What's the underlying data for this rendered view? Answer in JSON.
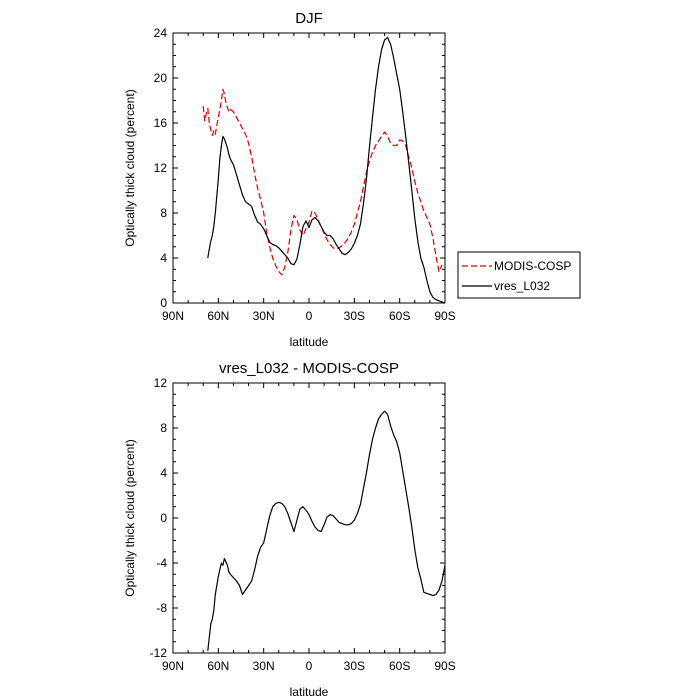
{
  "chart_data": [
    {
      "type": "line",
      "title": "DJF",
      "xlabel": "latitude",
      "ylabel": "Optically thick cloud (percent)",
      "xlim": [
        90,
        -90
      ],
      "ylim": [
        0,
        24
      ],
      "x_ticks": [
        90,
        60,
        30,
        0,
        -30,
        -60,
        -90
      ],
      "x_tick_labels": [
        "90N",
        "60N",
        "30N",
        "0",
        "30S",
        "60S",
        "90S"
      ],
      "y_ticks": [
        0,
        4,
        8,
        12,
        16,
        20,
        24
      ],
      "y_tick_labels": [
        "0",
        "4",
        "8",
        "12",
        "16",
        "20",
        "24"
      ],
      "legend_position": "right",
      "legend": [
        {
          "name": "MODIS-COSP",
          "color": "#e00000",
          "dash": "dashed"
        },
        {
          "name": "vres_L032",
          "color": "#000000",
          "dash": "solid"
        }
      ],
      "series": [
        {
          "name": "MODIS-COSP",
          "color": "#e00000",
          "dash": "dashed",
          "x": [
            70,
            69,
            68,
            67,
            66,
            65,
            64,
            63,
            62,
            61,
            60,
            59,
            58,
            57,
            56,
            55,
            54,
            53,
            52,
            50,
            48,
            46,
            44,
            42,
            40,
            38,
            36,
            34,
            32,
            30,
            28,
            26,
            24,
            22,
            20,
            18,
            16,
            14,
            12,
            10,
            8,
            6,
            4,
            2,
            0,
            -2,
            -4,
            -6,
            -8,
            -10,
            -12,
            -14,
            -16,
            -18,
            -20,
            -22,
            -24,
            -26,
            -28,
            -30,
            -32,
            -34,
            -36,
            -38,
            -40,
            -42,
            -44,
            -46,
            -48,
            -50,
            -52,
            -54,
            -56,
            -58,
            -60,
            -62,
            -64,
            -66,
            -68,
            -70,
            -72,
            -74,
            -76,
            -78,
            -80,
            -82,
            -84,
            -86,
            -88
          ],
          "values": [
            17.5,
            16.2,
            16.8,
            17.3,
            16.0,
            15.4,
            14.9,
            15.3,
            15.0,
            15.8,
            16.5,
            17.2,
            18.0,
            19.0,
            18.6,
            17.8,
            17.4,
            17.0,
            17.2,
            17.0,
            16.5,
            16.0,
            15.5,
            15.0,
            14.2,
            13.0,
            11.5,
            10.2,
            9.2,
            8.0,
            6.2,
            5.0,
            4.0,
            3.3,
            2.8,
            2.5,
            3.2,
            4.5,
            6.5,
            7.8,
            7.4,
            6.5,
            6.0,
            6.6,
            7.2,
            8.2,
            8.0,
            7.4,
            6.8,
            6.2,
            5.6,
            5.2,
            4.9,
            4.8,
            4.9,
            5.1,
            5.4,
            5.8,
            6.3,
            7.0,
            8.0,
            9.0,
            10.3,
            11.6,
            12.6,
            13.4,
            14.0,
            14.4,
            14.8,
            15.2,
            14.8,
            14.2,
            14.0,
            14.0,
            14.5,
            14.4,
            14.0,
            13.0,
            12.0,
            10.8,
            9.8,
            9.0,
            8.2,
            7.6,
            7.0,
            5.8,
            4.2,
            2.8,
            3.4
          ]
        },
        {
          "name": "vres_L032",
          "color": "#000000",
          "dash": "solid",
          "x": [
            67,
            66,
            65,
            64,
            63,
            62,
            61,
            60,
            59,
            58,
            57,
            56,
            55,
            54,
            53,
            52,
            50,
            48,
            46,
            44,
            42,
            40,
            38,
            36,
            34,
            32,
            30,
            28,
            26,
            24,
            22,
            20,
            18,
            16,
            14,
            12,
            10,
            8,
            6,
            4,
            2,
            0,
            -2,
            -4,
            -6,
            -8,
            -10,
            -12,
            -14,
            -16,
            -18,
            -20,
            -22,
            -24,
            -26,
            -28,
            -30,
            -32,
            -34,
            -36,
            -38,
            -40,
            -42,
            -44,
            -46,
            -48,
            -50,
            -52,
            -54,
            -56,
            -58,
            -60,
            -62,
            -64,
            -66,
            -68,
            -70,
            -72,
            -74,
            -76,
            -78,
            -80,
            -82,
            -84,
            -86,
            -88,
            -90
          ],
          "values": [
            4.0,
            4.8,
            5.5,
            6.0,
            6.8,
            8.0,
            9.5,
            11.0,
            12.8,
            14.0,
            14.8,
            14.6,
            14.2,
            13.8,
            13.2,
            12.8,
            12.3,
            11.4,
            10.5,
            9.6,
            9.0,
            8.8,
            8.6,
            7.8,
            7.2,
            7.0,
            6.6,
            6.0,
            5.4,
            5.2,
            5.1,
            4.9,
            4.6,
            4.3,
            4.0,
            3.5,
            3.4,
            3.9,
            5.2,
            6.8,
            7.3,
            6.7,
            7.4,
            7.6,
            7.3,
            6.8,
            6.3,
            6.0,
            6.0,
            5.7,
            5.2,
            4.8,
            4.4,
            4.3,
            4.5,
            4.8,
            5.3,
            6.0,
            7.0,
            8.8,
            11.0,
            13.8,
            16.5,
            19.0,
            21.0,
            22.5,
            23.4,
            23.6,
            23.0,
            21.8,
            20.4,
            19.0,
            17.0,
            14.8,
            12.5,
            10.0,
            7.5,
            5.5,
            4.0,
            3.2,
            2.0,
            1.0,
            0.5,
            0.3,
            0.2,
            0.1,
            0.0
          ]
        }
      ]
    },
    {
      "type": "line",
      "title": "vres_L032 - MODIS-COSP",
      "xlabel": "latitude",
      "ylabel": "Optically thick cloud (percent)",
      "xlim": [
        90,
        -90
      ],
      "ylim": [
        -12,
        12
      ],
      "x_ticks": [
        90,
        60,
        30,
        0,
        -30,
        -60,
        -90
      ],
      "x_tick_labels": [
        "90N",
        "60N",
        "30N",
        "0",
        "30S",
        "60S",
        "90S"
      ],
      "y_ticks": [
        -12,
        -8,
        -4,
        0,
        4,
        8,
        12
      ],
      "y_tick_labels": [
        "-12",
        "-8",
        "-4",
        "0",
        "4",
        "8",
        "12"
      ],
      "series": [
        {
          "color": "#000000",
          "dash": "solid",
          "x": [
            67,
            66,
            65,
            64,
            63,
            62,
            61,
            60,
            59,
            58,
            57,
            56,
            55,
            54,
            53,
            52,
            50,
            48,
            46,
            44,
            42,
            40,
            38,
            36,
            34,
            32,
            30,
            28,
            26,
            24,
            22,
            20,
            18,
            16,
            14,
            12,
            10,
            8,
            6,
            4,
            2,
            0,
            -2,
            -4,
            -6,
            -8,
            -10,
            -12,
            -14,
            -16,
            -18,
            -20,
            -22,
            -24,
            -26,
            -28,
            -30,
            -32,
            -34,
            -36,
            -38,
            -40,
            -42,
            -44,
            -46,
            -48,
            -50,
            -52,
            -54,
            -56,
            -58,
            -60,
            -62,
            -64,
            -66,
            -68,
            -70,
            -72,
            -74,
            -76,
            -78,
            -80,
            -82,
            -84,
            -86,
            -88,
            -90
          ],
          "values": [
            -11.8,
            -10.6,
            -9.4,
            -9.0,
            -8.2,
            -6.8,
            -6.0,
            -5.2,
            -4.6,
            -4.0,
            -4.2,
            -3.6,
            -3.9,
            -4.2,
            -4.8,
            -5.0,
            -5.3,
            -5.6,
            -6.0,
            -6.8,
            -6.4,
            -6.0,
            -5.6,
            -4.6,
            -3.4,
            -2.6,
            -2.2,
            -1.0,
            0.2,
            1.0,
            1.3,
            1.4,
            1.3,
            1.0,
            0.4,
            -0.4,
            -1.2,
            -0.2,
            0.8,
            1.0,
            0.7,
            0.3,
            -0.3,
            -0.8,
            -1.1,
            -1.2,
            -0.6,
            0.1,
            0.3,
            0.2,
            -0.1,
            -0.4,
            -0.5,
            -0.6,
            -0.6,
            -0.5,
            -0.2,
            0.4,
            1.2,
            2.6,
            4.0,
            5.6,
            7.0,
            8.0,
            8.8,
            9.2,
            9.5,
            9.2,
            8.2,
            7.4,
            6.8,
            5.8,
            4.2,
            2.6,
            1.0,
            -0.8,
            -2.8,
            -4.4,
            -5.4,
            -6.6,
            -6.7,
            -6.8,
            -6.9,
            -6.8,
            -6.4,
            -5.6,
            -4.2
          ]
        }
      ]
    }
  ]
}
